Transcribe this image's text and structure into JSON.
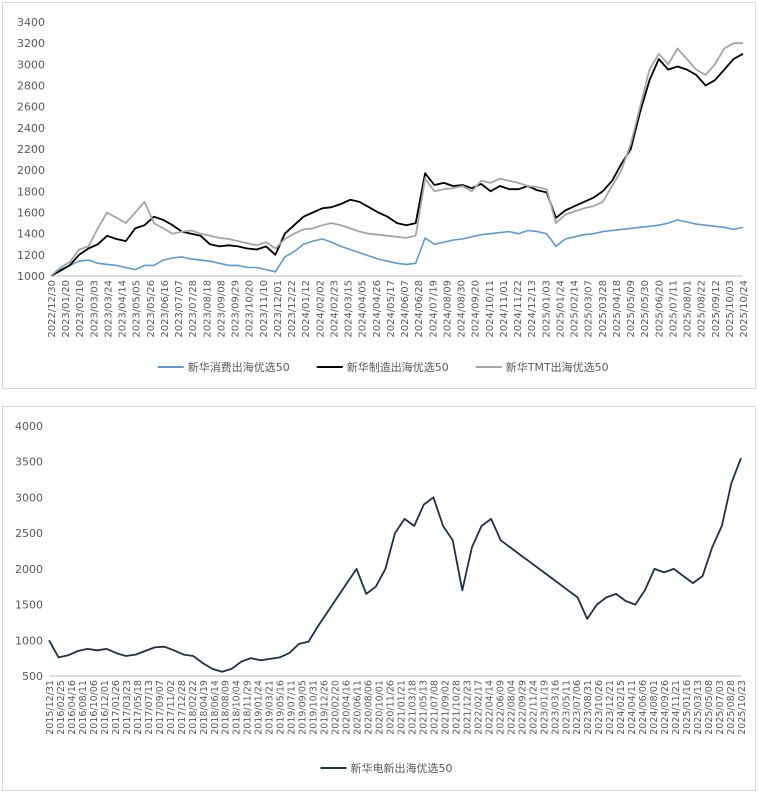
{
  "chart_data": [
    {
      "type": "line",
      "title": "",
      "xlabel": "",
      "ylabel": "",
      "ylim": [
        1000,
        3400
      ],
      "yticks": [
        1000,
        1200,
        1400,
        1600,
        1800,
        2000,
        2200,
        2400,
        2600,
        2800,
        3000,
        3200,
        3400
      ],
      "grid": false,
      "legend_position": "bottom",
      "x_tick_labels": [
        "2022/12/30",
        "2023/01/20",
        "2023/02/10",
        "2023/03/03",
        "2023/03/24",
        "2023/04/14",
        "2023/05/05",
        "2023/05/26",
        "2023/06/16",
        "2023/07/07",
        "2023/07/28",
        "2023/08/18",
        "2023/09/08",
        "2023/09/29",
        "2023/10/20",
        "2023/11/10",
        "2023/12/01",
        "2023/12/22",
        "2024/01/12",
        "2024/02/02",
        "2024/02/23",
        "2024/03/15",
        "2024/04/05",
        "2024/04/26",
        "2024/05/17",
        "2024/06/07",
        "2024/06/28",
        "2024/07/19",
        "2024/08/09",
        "2024/08/30",
        "2024/09/20",
        "2024/10/11",
        "2024/11/01",
        "2024/11/22",
        "2024/12/13",
        "2025/01/03",
        "2025/01/24",
        "2025/02/14",
        "2025/03/07",
        "2025/03/28",
        "2025/04/18",
        "2025/05/09",
        "2025/05/30",
        "2025/06/20",
        "2025/07/11",
        "2025/08/01",
        "2025/08/22",
        "2025/09/12",
        "2025/10/03",
        "2025/10/24"
      ],
      "series": [
        {
          "name": "新华消费出海优选50",
          "color": "#5b9bd5",
          "stroke_width": 1.6,
          "values": [
            1000,
            1060,
            1100,
            1140,
            1150,
            1120,
            1110,
            1100,
            1080,
            1060,
            1100,
            1100,
            1150,
            1170,
            1180,
            1160,
            1150,
            1140,
            1120,
            1100,
            1100,
            1080,
            1080,
            1060,
            1040,
            1180,
            1230,
            1300,
            1330,
            1350,
            1320,
            1280,
            1250,
            1220,
            1190,
            1160,
            1140,
            1120,
            1110,
            1120,
            1360,
            1300,
            1320,
            1340,
            1350,
            1370,
            1390,
            1400,
            1410,
            1420,
            1400,
            1430,
            1420,
            1400,
            1280,
            1350,
            1370,
            1390,
            1400,
            1420,
            1430,
            1440,
            1450,
            1460,
            1470,
            1480,
            1500,
            1530,
            1510,
            1490,
            1480,
            1470,
            1460,
            1440,
            1460
          ]
        },
        {
          "name": "新华制造出海优选50",
          "color": "#000000",
          "stroke_width": 1.8,
          "values": [
            1000,
            1050,
            1100,
            1200,
            1260,
            1300,
            1380,
            1350,
            1330,
            1450,
            1480,
            1560,
            1530,
            1480,
            1420,
            1400,
            1380,
            1300,
            1280,
            1290,
            1280,
            1260,
            1250,
            1280,
            1200,
            1400,
            1480,
            1560,
            1600,
            1640,
            1650,
            1680,
            1720,
            1700,
            1650,
            1600,
            1560,
            1500,
            1480,
            1500,
            1970,
            1860,
            1880,
            1850,
            1860,
            1830,
            1870,
            1800,
            1850,
            1820,
            1820,
            1850,
            1810,
            1790,
            1550,
            1620,
            1660,
            1700,
            1740,
            1800,
            1900,
            2060,
            2200,
            2550,
            2850,
            3050,
            2950,
            2980,
            2950,
            2900,
            2800,
            2850,
            2950,
            3050,
            3100
          ]
        },
        {
          "name": "新华TMT出海优选50",
          "color": "#a5a5a5",
          "stroke_width": 1.8,
          "values": [
            1000,
            1080,
            1130,
            1250,
            1280,
            1450,
            1600,
            1550,
            1500,
            1600,
            1700,
            1500,
            1450,
            1400,
            1420,
            1430,
            1400,
            1380,
            1360,
            1350,
            1330,
            1310,
            1290,
            1320,
            1260,
            1350,
            1400,
            1440,
            1450,
            1480,
            1500,
            1480,
            1450,
            1420,
            1400,
            1390,
            1380,
            1370,
            1360,
            1380,
            1920,
            1800,
            1820,
            1830,
            1850,
            1800,
            1900,
            1880,
            1920,
            1900,
            1880,
            1850,
            1840,
            1820,
            1500,
            1580,
            1610,
            1640,
            1660,
            1700,
            1850,
            2000,
            2250,
            2600,
            2950,
            3100,
            3000,
            3150,
            3050,
            2950,
            2900,
            3000,
            3150,
            3200,
            3200
          ]
        }
      ]
    },
    {
      "type": "line",
      "title": "",
      "xlabel": "",
      "ylabel": "",
      "ylim": [
        500,
        4000
      ],
      "yticks": [
        500,
        1000,
        1500,
        2000,
        2500,
        3000,
        3500,
        4000
      ],
      "grid": false,
      "legend_position": "bottom",
      "x_tick_labels": [
        "2015/12/31",
        "2016/02/25",
        "2016/04/16",
        "2016/08/11",
        "2016/10/06",
        "2016/12/01",
        "2017/01/26",
        "2017/03/23",
        "2017/05/18",
        "2017/07/13",
        "2017/09/07",
        "2017/11/02",
        "2017/12/28",
        "2018/02/22",
        "2018/04/19",
        "2018/06/14",
        "2018/08/09",
        "2018/10/04",
        "2018/11/29",
        "2019/01/24",
        "2019/03/21",
        "2019/05/16",
        "2019/07/11",
        "2019/09/05",
        "2019/10/31",
        "2019/12/26",
        "2020/02/20",
        "2020/04/16",
        "2020/06/11",
        "2020/08/06",
        "2020/10/01",
        "2020/11/26",
        "2021/01/21",
        "2021/03/18",
        "2021/05/13",
        "2021/07/08",
        "2021/09/02",
        "2021/10/28",
        "2021/12/23",
        "2022/02/17",
        "2022/04/14",
        "2022/06/09",
        "2022/08/04",
        "2022/09/29",
        "2022/11/24",
        "2023/01/19",
        "2023/03/16",
        "2023/05/11",
        "2023/07/06",
        "2023/08/31",
        "2023/10/26",
        "2023/12/21",
        "2024/02/15",
        "2024/04/11",
        "2024/06/06",
        "2024/08/01",
        "2024/09/26",
        "2024/11/21",
        "2025/01/16",
        "2025/03/13",
        "2025/05/08",
        "2025/07/03",
        "2025/08/28",
        "2025/10/23"
      ],
      "series": [
        {
          "name": "新华电新出海优选50",
          "color": "#1f3049",
          "stroke_width": 1.8,
          "values": [
            1000,
            760,
            790,
            850,
            880,
            860,
            880,
            820,
            780,
            800,
            850,
            900,
            910,
            860,
            800,
            780,
            680,
            600,
            560,
            600,
            700,
            750,
            720,
            740,
            760,
            820,
            950,
            980,
            1200,
            1400,
            1600,
            1800,
            2000,
            1650,
            1750,
            2000,
            2500,
            2700,
            2600,
            2900,
            3000,
            2600,
            2400,
            1700,
            2300,
            2600,
            2700,
            2400,
            2300,
            2200,
            2100,
            2000,
            1900,
            1800,
            1700,
            1600,
            1300,
            1500,
            1600,
            1650,
            1550,
            1500,
            1700,
            2000,
            1950,
            2000,
            1900,
            1800,
            1900,
            2300,
            2600,
            3200,
            3550
          ]
        }
      ]
    }
  ]
}
